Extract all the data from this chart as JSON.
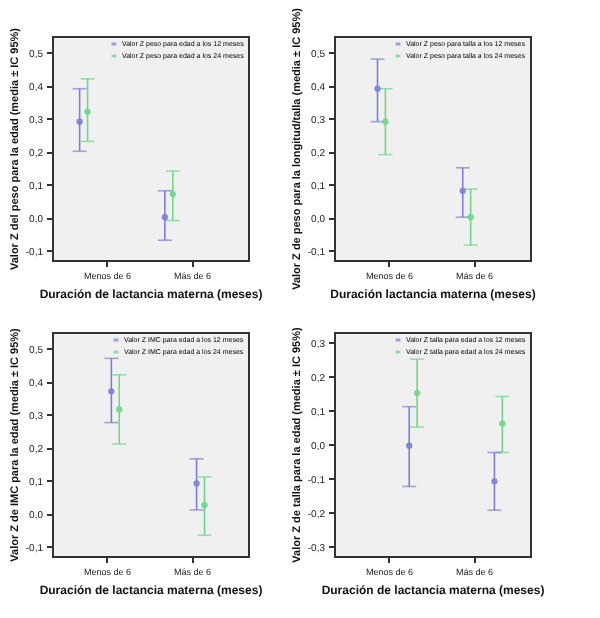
{
  "chart_data": [
    {
      "type": "scatter",
      "xlabel": "Duración de lactancia materna (meses)",
      "ylabel": "Valor Z del peso para la edad (media ± IC 95%)",
      "categories": [
        "Menos de 6",
        "Más de 6"
      ],
      "ylim": [
        -0.13,
        0.55
      ],
      "yticks": [
        {
          "value": -0.1,
          "label": "-0,1"
        },
        {
          "value": 0.0,
          "label": "0,0"
        },
        {
          "value": 0.1,
          "label": "0,1"
        },
        {
          "value": 0.2,
          "label": "0,2"
        },
        {
          "value": 0.3,
          "label": "0,3"
        },
        {
          "value": 0.4,
          "label": "0,4"
        },
        {
          "value": 0.5,
          "label": "0,5"
        }
      ],
      "marker": "circle",
      "legend": "top right",
      "grid": false,
      "series": [
        {
          "name": "Valor Z peso para edad a los 12 meses",
          "color": "#7b80d4",
          "values": [
            0.29,
            0.0
          ],
          "errors": [
            [
              0.2,
              0.39
            ],
            [
              -0.07,
              0.08
            ]
          ]
        },
        {
          "name": "Valor Z peso para edad a los 24 meses",
          "color": "#6fd68a",
          "values": [
            0.32,
            0.07
          ],
          "errors": [
            [
              0.23,
              0.42
            ],
            [
              -0.01,
              0.14
            ]
          ]
        }
      ]
    },
    {
      "type": "scatter",
      "xlabel": "Duración lactancia materna (meses)",
      "ylabel": "Valor Z de peso para la longitud/talla (media ± IC 95%)",
      "categories": [
        "Menos de 6",
        "Más de 6"
      ],
      "ylim": [
        -0.13,
        0.55
      ],
      "yticks": [
        {
          "value": -0.1,
          "label": "-0,1"
        },
        {
          "value": 0.0,
          "label": "0,0"
        },
        {
          "value": 0.1,
          "label": "0,1"
        },
        {
          "value": 0.2,
          "label": "0,2"
        },
        {
          "value": 0.3,
          "label": "0,3"
        },
        {
          "value": 0.4,
          "label": "0,4"
        },
        {
          "value": 0.5,
          "label": "0,5"
        }
      ],
      "marker": "circle",
      "legend": "top right",
      "grid": false,
      "series": [
        {
          "name": "Valor Z peso para talla a los 12 meses",
          "color": "#7b80d4",
          "values": [
            0.39,
            0.08
          ],
          "errors": [
            [
              0.29,
              0.48
            ],
            [
              0.0,
              0.15
            ]
          ]
        },
        {
          "name": "Valor Z peso para talla a los 24 meses",
          "color": "#6fd68a",
          "values": [
            0.29,
            0.0
          ],
          "errors": [
            [
              0.19,
              0.39
            ],
            [
              -0.085,
              0.085
            ]
          ]
        }
      ]
    },
    {
      "type": "scatter",
      "xlabel": "Duración de lactancia materna (meses)",
      "ylabel": "Valor Z de IMC para la edad (media ± IC 95%)",
      "categories": [
        "Menos de 6",
        "Más de 6"
      ],
      "ylim": [
        -0.13,
        0.55
      ],
      "yticks": [
        {
          "value": -0.1,
          "label": "-0,1"
        },
        {
          "value": 0.0,
          "label": "0,0"
        },
        {
          "value": 0.1,
          "label": "0,1"
        },
        {
          "value": 0.2,
          "label": "0,2"
        },
        {
          "value": 0.3,
          "label": "0,3"
        },
        {
          "value": 0.4,
          "label": "0,4"
        },
        {
          "value": 0.5,
          "label": "0,5"
        }
      ],
      "marker": "circle",
      "legend": "top right",
      "grid": false,
      "series": [
        {
          "name": "Valor Z IMC para edad a los 12 meses",
          "color": "#7b80d4",
          "values": [
            0.37,
            0.09
          ],
          "errors": [
            [
              0.275,
              0.47
            ],
            [
              0.01,
              0.165
            ]
          ]
        },
        {
          "name": "Valor Z IMC para edad a los 24 meses",
          "color": "#6fd68a",
          "values": [
            0.315,
            0.024
          ],
          "errors": [
            [
              0.21,
              0.42
            ],
            [
              -0.067,
              0.11
            ]
          ]
        }
      ]
    },
    {
      "type": "scatter",
      "xlabel": "Duración de lactancia materna (meses)",
      "ylabel": "Valor Z de talla para la edad (media ± IC 95%)",
      "categories": [
        "Menos de 6",
        "Más de 6"
      ],
      "ylim": [
        -0.33,
        0.33
      ],
      "yticks": [
        {
          "value": -0.3,
          "label": "-0,3"
        },
        {
          "value": -0.2,
          "label": "-0,2"
        },
        {
          "value": -0.1,
          "label": "-0,1"
        },
        {
          "value": 0.0,
          "label": "0,0"
        },
        {
          "value": 0.1,
          "label": "0,1"
        },
        {
          "value": 0.2,
          "label": "0,2"
        },
        {
          "value": 0.3,
          "label": "0,3"
        }
      ],
      "marker": "circle",
      "legend": "top right",
      "grid": false,
      "series": [
        {
          "name": "Valor Z talla para edad a los 12 meses",
          "color": "#7b80d4",
          "values": [
            -0.005,
            -0.11
          ],
          "errors": [
            [
              -0.125,
              0.11
            ],
            [
              -0.195,
              -0.025
            ]
          ]
        },
        {
          "name": "Valor Z talla para edad a los 24 meses",
          "color": "#6fd68a",
          "values": [
            0.15,
            0.06
          ],
          "errors": [
            [
              0.05,
              0.25
            ],
            [
              -0.025,
              0.14
            ]
          ]
        }
      ]
    }
  ]
}
